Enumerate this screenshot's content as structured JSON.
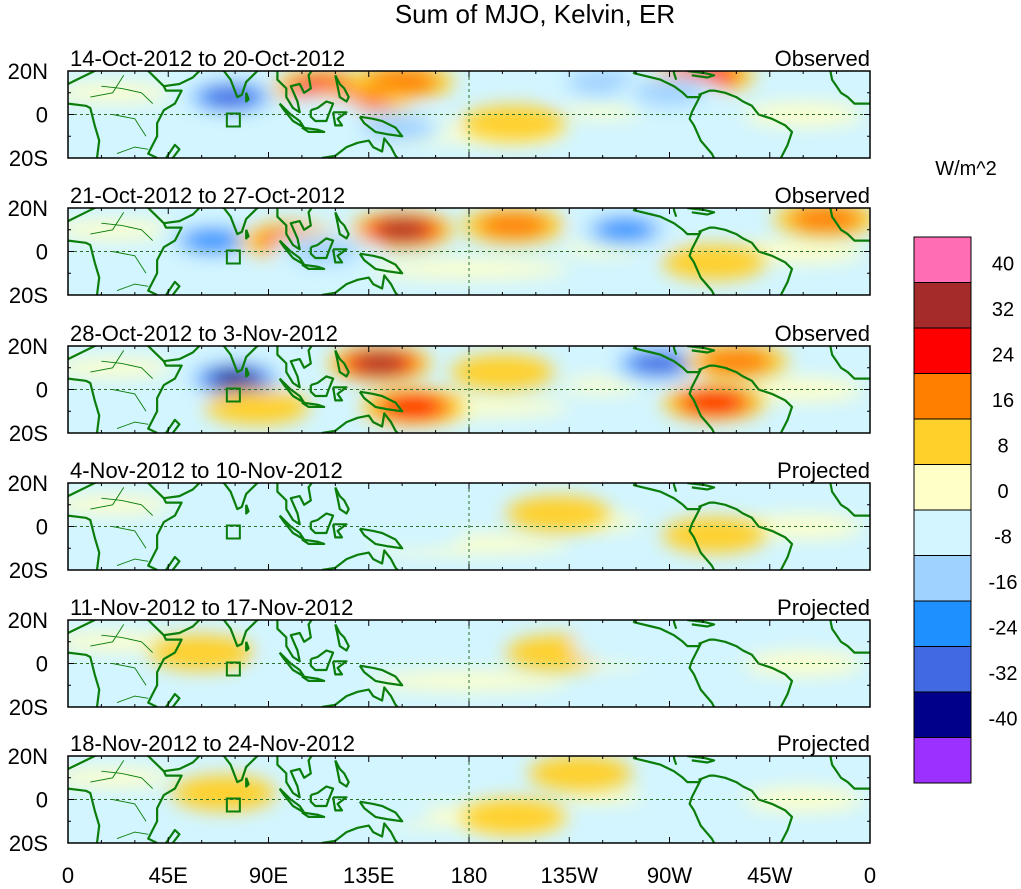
{
  "figure": {
    "title": "Sum of MJO, Kelvin, ER",
    "units": "W/m^2"
  },
  "axes": {
    "lat_ticks": [
      "20N",
      "0",
      "20S"
    ],
    "lon_ticks": [
      "0",
      "45E",
      "90E",
      "135E",
      "180",
      "135W",
      "90W",
      "45W",
      "0"
    ]
  },
  "panels": [
    {
      "period": "14-Oct-2012 to 20-Oct-2012",
      "status": "Observed"
    },
    {
      "period": "21-Oct-2012 to 27-Oct-2012",
      "status": "Observed"
    },
    {
      "period": "28-Oct-2012 to 3-Nov-2012",
      "status": "Observed"
    },
    {
      "period": "4-Nov-2012 to 10-Nov-2012",
      "status": "Projected"
    },
    {
      "period": "11-Nov-2012 to 17-Nov-2012",
      "status": "Projected"
    },
    {
      "period": "18-Nov-2012 to 24-Nov-2012",
      "status": "Projected"
    }
  ],
  "colorbar": {
    "labels": [
      "40",
      "32",
      "24",
      "16",
      "8",
      "0",
      "-8",
      "-16",
      "-24",
      "-32",
      "-40"
    ],
    "colors": [
      "#ff6eb4",
      "#a52a2a",
      "#ff0000",
      "#ff7f00",
      "#ffd02a",
      "#ffffc8",
      "#d2f5ff",
      "#a0d2ff",
      "#1e90ff",
      "#4169e1",
      "#00008b",
      "#9b30ff"
    ]
  },
  "chart_data": {
    "type": "heatmap",
    "title": "Sum of MJO, Kelvin, ER",
    "units": "W/m^2",
    "lon_range": [
      0,
      360
    ],
    "lat_range": [
      -20,
      20
    ],
    "levels": [
      -40,
      -32,
      -24,
      -16,
      -8,
      0,
      8,
      16,
      24,
      32,
      40
    ],
    "panels": [
      {
        "period": "14-Oct-2012 to 20-Oct-2012",
        "status": "Observed",
        "anomalies": [
          {
            "lon": 73,
            "lat": 8,
            "value": -38
          },
          {
            "lon": 115,
            "lat": 12,
            "value": 24
          },
          {
            "lon": 150,
            "lat": 15,
            "value": 20
          },
          {
            "lon": 130,
            "lat": 5,
            "value": 16
          },
          {
            "lon": 148,
            "lat": -6,
            "value": -20
          },
          {
            "lon": 240,
            "lat": 15,
            "value": -22
          },
          {
            "lon": 285,
            "lat": 18,
            "value": 30
          },
          {
            "lon": 270,
            "lat": 10,
            "value": -18
          },
          {
            "lon": 200,
            "lat": -4,
            "value": 10
          },
          {
            "lon": 110,
            "lat": 0,
            "value": -10
          }
        ]
      },
      {
        "period": "21-Oct-2012 to 27-Oct-2012",
        "status": "Observed",
        "anomalies": [
          {
            "lon": 65,
            "lat": 5,
            "value": -30
          },
          {
            "lon": 150,
            "lat": 10,
            "value": 36
          },
          {
            "lon": 100,
            "lat": 5,
            "value": 20
          },
          {
            "lon": 115,
            "lat": 0,
            "value": -16
          },
          {
            "lon": 250,
            "lat": 10,
            "value": -26
          },
          {
            "lon": 200,
            "lat": 12,
            "value": 18
          },
          {
            "lon": 340,
            "lat": 15,
            "value": 18
          },
          {
            "lon": 290,
            "lat": -5,
            "value": 10
          }
        ]
      },
      {
        "period": "28-Oct-2012 to 3-Nov-2012",
        "status": "Observed",
        "anomalies": [
          {
            "lon": 75,
            "lat": 5,
            "value": -42
          },
          {
            "lon": 140,
            "lat": 12,
            "value": 36
          },
          {
            "lon": 155,
            "lat": -8,
            "value": 28
          },
          {
            "lon": 265,
            "lat": 12,
            "value": -32
          },
          {
            "lon": 300,
            "lat": 13,
            "value": 20
          },
          {
            "lon": 290,
            "lat": -6,
            "value": 24
          },
          {
            "lon": 85,
            "lat": -8,
            "value": 14
          },
          {
            "lon": 195,
            "lat": 8,
            "value": 12
          }
        ]
      },
      {
        "period": "4-Nov-2012 to 10-Nov-2012",
        "status": "Projected",
        "anomalies": [
          {
            "lon": 155,
            "lat": -3,
            "value": -10
          },
          {
            "lon": 220,
            "lat": 6,
            "value": 8
          },
          {
            "lon": 290,
            "lat": -4,
            "value": 8
          },
          {
            "lon": 80,
            "lat": -6,
            "value": -8
          }
        ]
      },
      {
        "period": "11-Nov-2012 to 17-Nov-2012",
        "status": "Projected",
        "anomalies": [
          {
            "lon": 60,
            "lat": 5,
            "value": 10
          },
          {
            "lon": 110,
            "lat": -5,
            "value": -9
          },
          {
            "lon": 220,
            "lat": 5,
            "value": 10
          },
          {
            "lon": 250,
            "lat": 8,
            "value": -8
          }
        ]
      },
      {
        "period": "18-Nov-2012 to 24-Nov-2012",
        "status": "Projected",
        "anomalies": [
          {
            "lon": 70,
            "lat": 3,
            "value": 12
          },
          {
            "lon": 140,
            "lat": -5,
            "value": -8
          },
          {
            "lon": 230,
            "lat": 12,
            "value": 8
          },
          {
            "lon": 200,
            "lat": -8,
            "value": 8
          }
        ]
      }
    ]
  }
}
